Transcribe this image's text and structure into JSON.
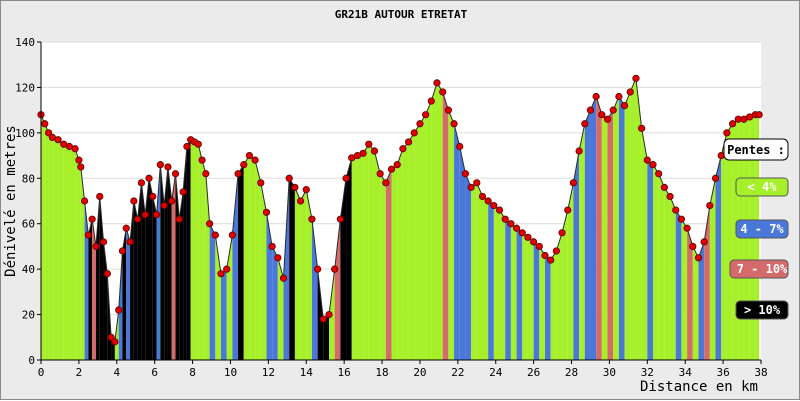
{
  "chart_data": {
    "type": "area",
    "title": "GR21B AUTOUR ETRETAT",
    "xlabel": "Distance en km",
    "ylabel": "Dénivelé en metres",
    "xlim": [
      0,
      38
    ],
    "ylim": [
      0,
      140
    ],
    "x_ticks": [
      0,
      2,
      4,
      6,
      8,
      10,
      12,
      14,
      16,
      18,
      20,
      22,
      24,
      26,
      28,
      30,
      32,
      34,
      36,
      38
    ],
    "y_ticks": [
      0,
      20,
      40,
      60,
      80,
      100,
      120,
      140
    ],
    "grid": true,
    "legend": {
      "title": "Pentes :",
      "position": "right",
      "entries": [
        {
          "label": "< 4%",
          "color": "#a6f02a",
          "text_color": "#ffffff"
        },
        {
          "label": "4 - 7%",
          "color": "#4a78d8",
          "text_color": "#ffffff"
        },
        {
          "label": "7 - 10%",
          "color": "#d46a6a",
          "text_color": "#ffffff"
        },
        {
          "label": "> 10%",
          "color": "#000000",
          "text_color": "#ffffff"
        }
      ]
    },
    "colors": {
      "gentle": "#a6f02a",
      "moderate": "#4a78d8",
      "steep": "#d46a6a",
      "very_steep": "#000000",
      "marker": "#e00000"
    },
    "series": [
      {
        "x": [
          0,
          0.2,
          0.4,
          0.6,
          0.9,
          1.2,
          1.5,
          1.8,
          2.0,
          2.1,
          2.3,
          2.5,
          2.7,
          2.9,
          3.1,
          3.3,
          3.5,
          3.7,
          3.9,
          4.1,
          4.3,
          4.5,
          4.7,
          4.9,
          5.1,
          5.3,
          5.5,
          5.7,
          5.9,
          6.1,
          6.3,
          6.5,
          6.7,
          6.9,
          7.1,
          7.3,
          7.5,
          7.7,
          7.9,
          8.1,
          8.3,
          8.5,
          8.7,
          8.9,
          9.2,
          9.5,
          9.8,
          10.1,
          10.4,
          10.7,
          11.0,
          11.3,
          11.6,
          11.9,
          12.2,
          12.5,
          12.8,
          13.1,
          13.4,
          13.7,
          14.0,
          14.3,
          14.6,
          14.9,
          15.2,
          15.5,
          15.8,
          16.1,
          16.4,
          16.7,
          17.0,
          17.3,
          17.6,
          17.9,
          18.2,
          18.5,
          18.8,
          19.1,
          19.4,
          19.7,
          20.0,
          20.3,
          20.6,
          20.9,
          21.2,
          21.5,
          21.8,
          22.1,
          22.4,
          22.7,
          23.0,
          23.3,
          23.6,
          23.9,
          24.2,
          24.5,
          24.8,
          25.1,
          25.4,
          25.7,
          26.0,
          26.3,
          26.6,
          26.9,
          27.2,
          27.5,
          27.8,
          28.1,
          28.4,
          28.7,
          29.0,
          29.3,
          29.6,
          29.9,
          30.2,
          30.5,
          30.8,
          31.1,
          31.4,
          31.7,
          32.0,
          32.3,
          32.6,
          32.9,
          33.2,
          33.5,
          33.8,
          34.1,
          34.4,
          34.7,
          35.0,
          35.3,
          35.6,
          35.9,
          36.2,
          36.5,
          36.8,
          37.1,
          37.4,
          37.7,
          37.9
        ],
        "y": [
          108,
          104,
          100,
          98,
          97,
          95,
          94,
          93,
          88,
          85,
          70,
          55,
          62,
          50,
          72,
          52,
          38,
          10,
          8,
          22,
          48,
          58,
          52,
          70,
          62,
          78,
          64,
          80,
          72,
          64,
          86,
          68,
          85,
          70,
          82,
          62,
          74,
          94,
          97,
          96,
          95,
          88,
          82,
          60,
          55,
          38,
          40,
          55,
          82,
          86,
          90,
          88,
          78,
          65,
          50,
          45,
          36,
          80,
          76,
          70,
          75,
          62,
          40,
          18,
          20,
          40,
          62,
          80,
          89,
          90,
          91,
          95,
          92,
          82,
          78,
          84,
          86,
          93,
          96,
          100,
          104,
          108,
          114,
          122,
          118,
          110,
          104,
          94,
          82,
          76,
          78,
          72,
          70,
          68,
          66,
          62,
          60,
          58,
          56,
          54,
          52,
          50,
          46,
          44,
          48,
          56,
          66,
          78,
          92,
          104,
          110,
          116,
          108,
          106,
          110,
          116,
          112,
          118,
          124,
          102,
          88,
          86,
          82,
          76,
          72,
          66,
          62,
          58,
          50,
          45,
          52,
          68,
          80,
          90,
          100,
          104,
          106,
          106,
          107,
          108,
          108
        ],
        "slopes": [
          0,
          0,
          0,
          0,
          0,
          0,
          0,
          0,
          0,
          0,
          1,
          3,
          2,
          3,
          3,
          3,
          3,
          3,
          0,
          1,
          3,
          1,
          3,
          3,
          3,
          3,
          3,
          3,
          3,
          1,
          3,
          3,
          3,
          2,
          3,
          3,
          3,
          3,
          0,
          0,
          0,
          0,
          0,
          1,
          0,
          1,
          0,
          1,
          3,
          0,
          0,
          0,
          0,
          1,
          1,
          0,
          1,
          3,
          0,
          0,
          0,
          1,
          3,
          3,
          0,
          2,
          3,
          3,
          0,
          0,
          0,
          0,
          0,
          0,
          2,
          0,
          0,
          0,
          0,
          0,
          0,
          0,
          0,
          0,
          2,
          0,
          1,
          1,
          1,
          0,
          0,
          0,
          1,
          0,
          0,
          1,
          0,
          1,
          0,
          0,
          1,
          0,
          1,
          0,
          0,
          0,
          0,
          1,
          0,
          1,
          1,
          2,
          0,
          2,
          0,
          1,
          0,
          0,
          0,
          0,
          1,
          0,
          0,
          0,
          0,
          1,
          0,
          2,
          0,
          1,
          2,
          0,
          1,
          0,
          0,
          0,
          0,
          0,
          0,
          0,
          0
        ]
      }
    ]
  }
}
